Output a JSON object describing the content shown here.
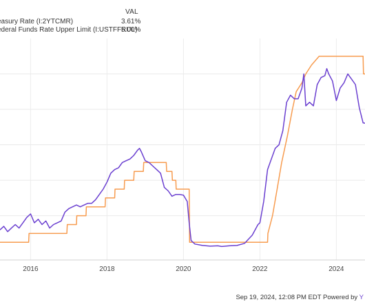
{
  "legend": {
    "header": "VAL",
    "rows": [
      {
        "name": "easury Rate (I:2YTCMR)",
        "value": "3.61%",
        "color": "#6a3fd0"
      },
      {
        "name": "ederal Funds Rate Upper Limit (I:USTFFRUL)",
        "value": "5.00%",
        "color": "#f79b4e"
      }
    ]
  },
  "footer": {
    "text": "Sep 19, 2024, 12:08 PM EDT Powered by ",
    "brand": "Y"
  },
  "chart_data": {
    "type": "line",
    "title": "",
    "xlabel": "",
    "ylabel": "",
    "x_ticks": [
      "2016",
      "2018",
      "2020",
      "2022",
      "2024"
    ],
    "x_range": [
      2015.2,
      2024.75
    ],
    "y_range": [
      -0.25,
      6.0
    ],
    "grid": true,
    "series": [
      {
        "name": "easury Rate (I:2YTCMR)",
        "color": "#6a3fd0",
        "points": [
          [
            2015.2,
            0.6
          ],
          [
            2015.3,
            0.7
          ],
          [
            2015.4,
            0.55
          ],
          [
            2015.5,
            0.65
          ],
          [
            2015.6,
            0.75
          ],
          [
            2015.7,
            0.65
          ],
          [
            2015.8,
            0.8
          ],
          [
            2015.9,
            0.95
          ],
          [
            2016.0,
            1.05
          ],
          [
            2016.1,
            0.8
          ],
          [
            2016.2,
            0.9
          ],
          [
            2016.3,
            0.75
          ],
          [
            2016.4,
            0.85
          ],
          [
            2016.5,
            0.65
          ],
          [
            2016.6,
            0.75
          ],
          [
            2016.7,
            0.8
          ],
          [
            2016.8,
            0.85
          ],
          [
            2016.9,
            1.1
          ],
          [
            2017.0,
            1.2
          ],
          [
            2017.1,
            1.25
          ],
          [
            2017.2,
            1.3
          ],
          [
            2017.3,
            1.25
          ],
          [
            2017.4,
            1.3
          ],
          [
            2017.5,
            1.35
          ],
          [
            2017.6,
            1.35
          ],
          [
            2017.7,
            1.45
          ],
          [
            2017.8,
            1.6
          ],
          [
            2017.9,
            1.75
          ],
          [
            2018.0,
            1.95
          ],
          [
            2018.1,
            2.2
          ],
          [
            2018.2,
            2.3
          ],
          [
            2018.3,
            2.35
          ],
          [
            2018.4,
            2.5
          ],
          [
            2018.5,
            2.55
          ],
          [
            2018.6,
            2.6
          ],
          [
            2018.7,
            2.7
          ],
          [
            2018.8,
            2.85
          ],
          [
            2018.85,
            2.9
          ],
          [
            2018.9,
            2.8
          ],
          [
            2019.0,
            2.55
          ],
          [
            2019.1,
            2.5
          ],
          [
            2019.2,
            2.4
          ],
          [
            2019.3,
            2.3
          ],
          [
            2019.4,
            2.2
          ],
          [
            2019.5,
            1.8
          ],
          [
            2019.6,
            1.7
          ],
          [
            2019.7,
            1.55
          ],
          [
            2019.8,
            1.6
          ],
          [
            2019.9,
            1.6
          ],
          [
            2020.0,
            1.58
          ],
          [
            2020.1,
            1.4
          ],
          [
            2020.15,
            0.8
          ],
          [
            2020.2,
            0.3
          ],
          [
            2020.3,
            0.2
          ],
          [
            2020.5,
            0.16
          ],
          [
            2020.7,
            0.14
          ],
          [
            2020.9,
            0.15
          ],
          [
            2021.0,
            0.13
          ],
          [
            2021.2,
            0.15
          ],
          [
            2021.4,
            0.16
          ],
          [
            2021.6,
            0.22
          ],
          [
            2021.8,
            0.45
          ],
          [
            2021.95,
            0.75
          ],
          [
            2022.0,
            0.8
          ],
          [
            2022.1,
            1.4
          ],
          [
            2022.2,
            2.3
          ],
          [
            2022.3,
            2.6
          ],
          [
            2022.4,
            2.9
          ],
          [
            2022.5,
            3.0
          ],
          [
            2022.6,
            3.4
          ],
          [
            2022.7,
            4.2
          ],
          [
            2022.8,
            4.4
          ],
          [
            2022.9,
            4.3
          ],
          [
            2023.0,
            4.3
          ],
          [
            2023.1,
            4.6
          ],
          [
            2023.15,
            5.0
          ],
          [
            2023.2,
            4.1
          ],
          [
            2023.3,
            4.2
          ],
          [
            2023.4,
            4.1
          ],
          [
            2023.5,
            4.7
          ],
          [
            2023.6,
            4.9
          ],
          [
            2023.7,
            4.95
          ],
          [
            2023.75,
            5.15
          ],
          [
            2023.8,
            5.0
          ],
          [
            2023.9,
            4.8
          ],
          [
            2024.0,
            4.25
          ],
          [
            2024.1,
            4.6
          ],
          [
            2024.2,
            4.75
          ],
          [
            2024.3,
            5.0
          ],
          [
            2024.4,
            4.85
          ],
          [
            2024.5,
            4.7
          ],
          [
            2024.6,
            4.05
          ],
          [
            2024.7,
            3.62
          ],
          [
            2024.75,
            3.61
          ]
        ]
      },
      {
        "name": "ederal Funds Rate Upper Limit (I:USTFFRUL)",
        "color": "#f79b4e",
        "points": [
          [
            2015.2,
            0.25
          ],
          [
            2015.95,
            0.25
          ],
          [
            2015.96,
            0.5
          ],
          [
            2016.95,
            0.5
          ],
          [
            2016.96,
            0.75
          ],
          [
            2017.2,
            0.75
          ],
          [
            2017.21,
            1.0
          ],
          [
            2017.45,
            1.0
          ],
          [
            2017.46,
            1.25
          ],
          [
            2017.95,
            1.25
          ],
          [
            2017.96,
            1.5
          ],
          [
            2018.2,
            1.5
          ],
          [
            2018.21,
            1.75
          ],
          [
            2018.45,
            1.75
          ],
          [
            2018.46,
            2.0
          ],
          [
            2018.7,
            2.0
          ],
          [
            2018.71,
            2.25
          ],
          [
            2018.95,
            2.25
          ],
          [
            2018.96,
            2.5
          ],
          [
            2019.55,
            2.5
          ],
          [
            2019.56,
            2.25
          ],
          [
            2019.7,
            2.25
          ],
          [
            2019.71,
            2.0
          ],
          [
            2019.8,
            2.0
          ],
          [
            2019.81,
            1.75
          ],
          [
            2020.15,
            1.75
          ],
          [
            2020.16,
            0.25
          ],
          [
            2022.2,
            0.25
          ],
          [
            2022.21,
            0.5
          ],
          [
            2022.33,
            1.0
          ],
          [
            2022.45,
            1.75
          ],
          [
            2022.57,
            2.5
          ],
          [
            2022.72,
            3.25
          ],
          [
            2022.85,
            4.0
          ],
          [
            2022.95,
            4.5
          ],
          [
            2023.1,
            4.75
          ],
          [
            2023.2,
            5.0
          ],
          [
            2023.35,
            5.25
          ],
          [
            2023.55,
            5.5
          ],
          [
            2024.7,
            5.5
          ],
          [
            2024.71,
            5.0
          ],
          [
            2024.75,
            5.0
          ]
        ]
      }
    ]
  }
}
